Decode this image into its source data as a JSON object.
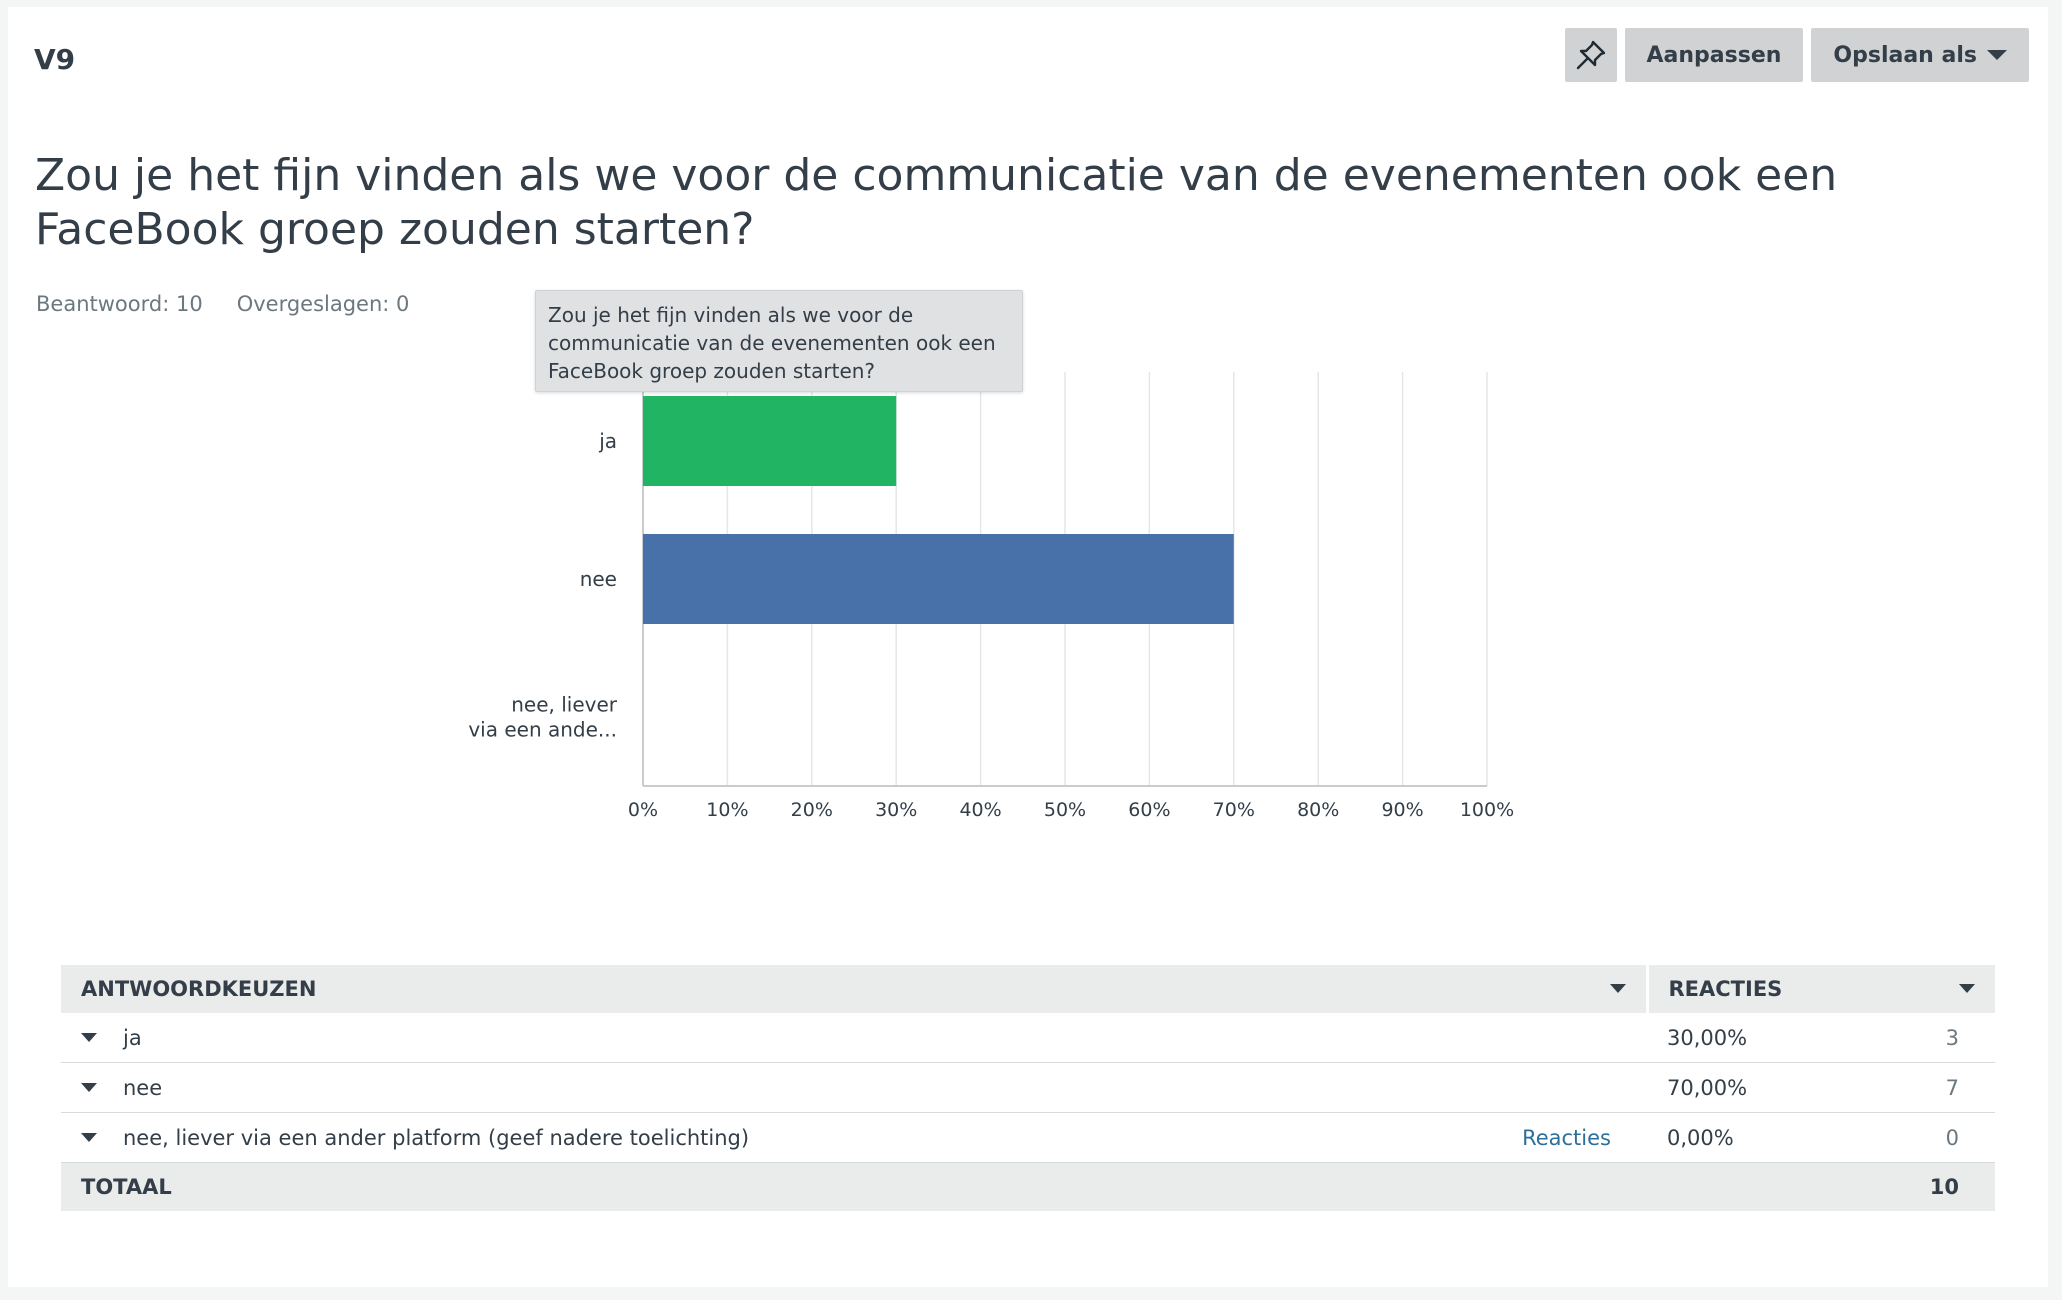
{
  "header": {
    "question_number": "V9",
    "pin_icon": "pin-icon",
    "customize_label": "Aanpassen",
    "save_as_label": "Opslaan als"
  },
  "question": {
    "title": "Zou je het fijn vinden als we voor de communicatie van de evenementen ook een FaceBook groep zouden starten?",
    "answered": "Beantwoord: 10",
    "skipped": "Overgeslagen: 0"
  },
  "tooltip": {
    "text": "Zou je het fijn vinden als we voor de communicatie van de evenementen ook een FaceBook groep zouden starten?"
  },
  "chart_data": {
    "type": "bar",
    "orientation": "horizontal",
    "categories": [
      "ja",
      "nee",
      "nee, liever via een ande..."
    ],
    "category_lines": [
      [
        "ja"
      ],
      [
        "nee"
      ],
      [
        "nee, liever",
        "via een ande..."
      ]
    ],
    "values": [
      30,
      70,
      0
    ],
    "colors": [
      "#21b563",
      "#4771a8",
      "#4771a8"
    ],
    "xlim": [
      0,
      100
    ],
    "xticks": [
      "0%",
      "10%",
      "20%",
      "30%",
      "40%",
      "50%",
      "60%",
      "70%",
      "80%",
      "90%",
      "100%"
    ],
    "grid": true,
    "title": "",
    "xlabel": "",
    "ylabel": ""
  },
  "table": {
    "col_choices": "ANTWOORDKEUZEN",
    "col_responses": "REACTIES",
    "rows": [
      {
        "label": "ja",
        "link": "",
        "percent": "30,00%",
        "count": "3"
      },
      {
        "label": "nee",
        "link": "",
        "percent": "70,00%",
        "count": "7"
      },
      {
        "label": "nee, liever via een ander platform (geef nadere toelichting)",
        "link": "Reacties",
        "percent": "0,00%",
        "count": "0"
      }
    ],
    "total_label": "TOTAAL",
    "total_count": "10"
  }
}
